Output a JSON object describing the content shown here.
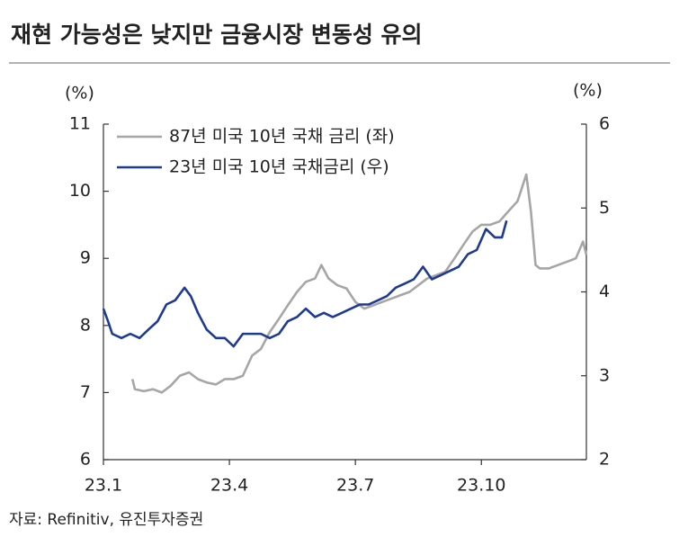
{
  "chart_data": {
    "type": "line",
    "title": "재현 가능성은 낮지만 금융시장 변동성 유의",
    "ylabel": "(%)",
    "y2label": "(%)",
    "source": "자료: Refinitiv, 유진투자증권",
    "xlim": [
      0,
      11.5
    ],
    "xticks": [
      {
        "value": 0,
        "label": "23.1"
      },
      {
        "value": 3,
        "label": "23.4"
      },
      {
        "value": 6,
        "label": "23.7"
      },
      {
        "value": 9,
        "label": "23.10"
      }
    ],
    "ylim": [
      6,
      11
    ],
    "yticks": [
      6,
      7,
      8,
      9,
      10,
      11
    ],
    "y2lim": [
      2,
      6
    ],
    "y2ticks": [
      2,
      3,
      4,
      5,
      6
    ],
    "legend": "top-left",
    "series": [
      {
        "name": "87년 미국 10년 국채 금리 (좌)",
        "color": "#a6a6a6",
        "axis": "y",
        "x": [
          0.69,
          0.75,
          0.96,
          1.18,
          1.39,
          1.6,
          1.82,
          2.04,
          2.25,
          2.46,
          2.68,
          2.89,
          3.1,
          3.32,
          3.54,
          3.75,
          3.96,
          4.18,
          4.39,
          4.61,
          4.82,
          5.04,
          5.19,
          5.36,
          5.57,
          5.79,
          6.0,
          6.21,
          6.43,
          6.64,
          6.86,
          7.07,
          7.29,
          7.5,
          7.71,
          7.93,
          8.14,
          8.36,
          8.57,
          8.79,
          9.0,
          9.21,
          9.43,
          9.64,
          9.86,
          10.07,
          10.18,
          10.29,
          10.39,
          10.61,
          10.82,
          11.04,
          11.25,
          11.42,
          11.5
        ],
        "values": [
          7.2,
          7.05,
          7.02,
          7.05,
          7.0,
          7.1,
          7.25,
          7.3,
          7.2,
          7.15,
          7.12,
          7.2,
          7.2,
          7.25,
          7.55,
          7.65,
          7.9,
          8.1,
          8.3,
          8.5,
          8.65,
          8.7,
          8.9,
          8.7,
          8.6,
          8.55,
          8.35,
          8.25,
          8.3,
          8.35,
          8.4,
          8.45,
          8.5,
          8.6,
          8.7,
          8.75,
          8.8,
          9.0,
          9.2,
          9.4,
          9.5,
          9.5,
          9.55,
          9.7,
          9.85,
          10.25,
          9.7,
          8.9,
          8.85,
          8.85,
          8.9,
          8.95,
          9.0,
          9.25,
          9.05
        ]
      },
      {
        "name": "23년 미국 10년 국채금리 (우)",
        "color": "#1f3a93",
        "axis": "y2",
        "x": [
          0,
          0.11,
          0.21,
          0.43,
          0.64,
          0.86,
          1.07,
          1.29,
          1.5,
          1.71,
          1.93,
          2.08,
          2.25,
          2.46,
          2.68,
          2.89,
          3.1,
          3.32,
          3.54,
          3.75,
          3.96,
          4.18,
          4.39,
          4.61,
          4.82,
          5.04,
          5.25,
          5.46,
          5.68,
          5.89,
          6.11,
          6.32,
          6.54,
          6.75,
          6.96,
          7.18,
          7.39,
          7.61,
          7.82,
          8.04,
          8.25,
          8.46,
          8.68,
          8.89,
          9.11,
          9.32,
          9.49,
          9.6
        ],
        "values": [
          3.8,
          3.65,
          3.5,
          3.45,
          3.5,
          3.45,
          3.55,
          3.65,
          3.85,
          3.9,
          4.05,
          3.95,
          3.75,
          3.55,
          3.45,
          3.45,
          3.35,
          3.5,
          3.5,
          3.5,
          3.45,
          3.5,
          3.65,
          3.7,
          3.8,
          3.7,
          3.75,
          3.7,
          3.75,
          3.8,
          3.85,
          3.85,
          3.9,
          3.95,
          4.05,
          4.1,
          4.15,
          4.3,
          4.15,
          4.2,
          4.25,
          4.3,
          4.45,
          4.5,
          4.75,
          4.65,
          4.65,
          4.85
        ]
      }
    ]
  }
}
